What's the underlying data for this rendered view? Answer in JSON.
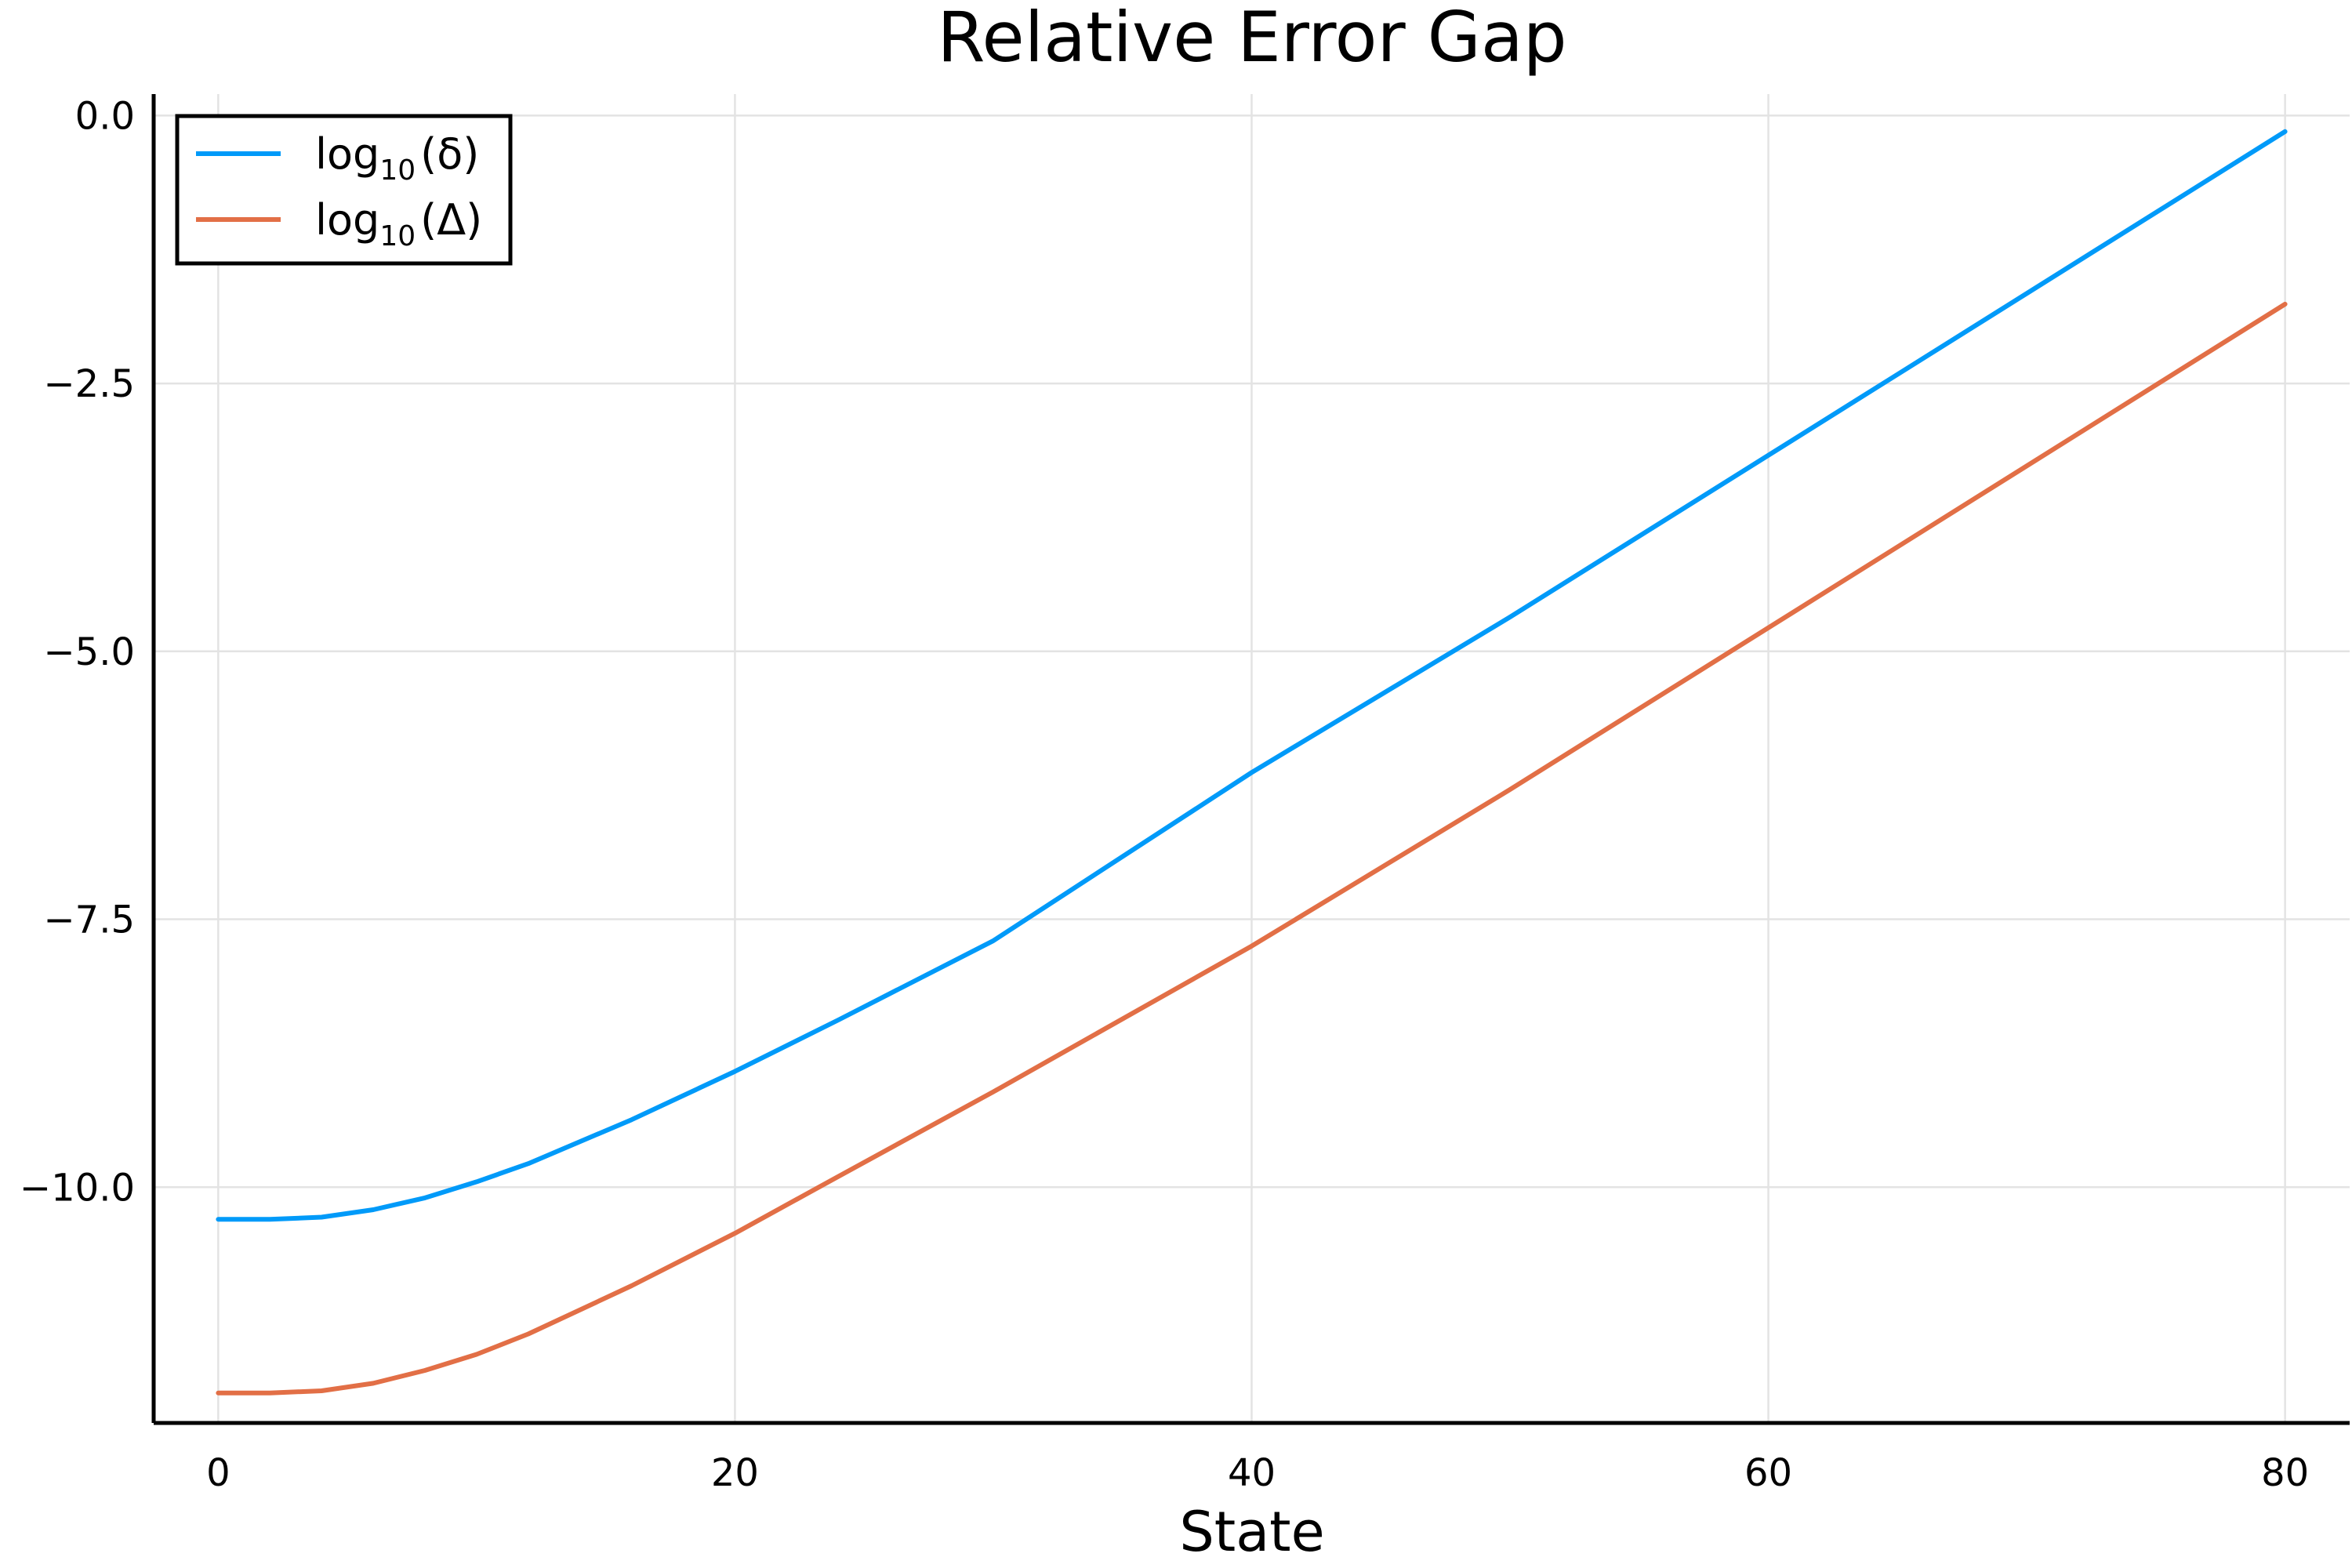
{
  "chart_data": {
    "type": "line",
    "title": "Relative Error Gap",
    "xlabel": "State",
    "ylabel": "",
    "xlim": [
      -2.5,
      82.5
    ],
    "ylim": [
      -12.2,
      0.2
    ],
    "xticks": [
      0,
      20,
      40,
      60,
      80
    ],
    "xtick_labels": [
      "0",
      "20",
      "40",
      "60",
      "80"
    ],
    "yticks": [
      0,
      -2.5,
      -5,
      -7.5,
      -10
    ],
    "ytick_labels": [
      "0.0",
      "−2.5",
      "−5.0",
      "−7.5",
      "−10.0"
    ],
    "grid": true,
    "legend_position": "top-left",
    "x": [
      0,
      2,
      4,
      6,
      8,
      10,
      12,
      16,
      20,
      24,
      30,
      40,
      50,
      60,
      70,
      80
    ],
    "series": [
      {
        "name": "log10(δ)",
        "legend_base": "log",
        "legend_sub": "10",
        "legend_arg": "(δ)",
        "color": "#009af9",
        "values": [
          -10.3,
          -10.3,
          -10.28,
          -10.21,
          -10.1,
          -9.95,
          -9.78,
          -9.37,
          -8.92,
          -8.44,
          -7.7,
          -6.13,
          -4.68,
          -3.17,
          -1.66,
          -0.15
        ]
      },
      {
        "name": "log10(Δ)",
        "legend_base": "log",
        "legend_sub": "10",
        "legend_arg": "(Δ)",
        "color": "#e26f46",
        "values": [
          -11.92,
          -11.92,
          -11.9,
          -11.83,
          -11.71,
          -11.56,
          -11.37,
          -10.92,
          -10.43,
          -9.9,
          -9.11,
          -7.75,
          -6.29,
          -4.78,
          -3.27,
          -1.76
        ]
      }
    ]
  }
}
